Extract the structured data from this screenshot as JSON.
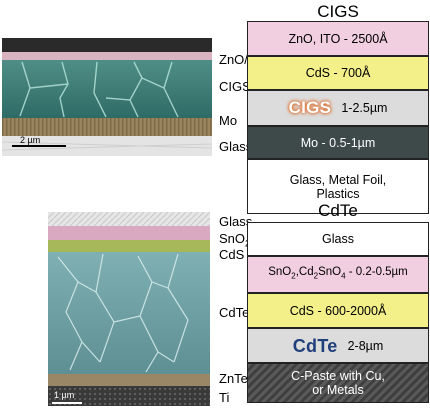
{
  "cigs": {
    "title": "CIGS",
    "micrograph_labels": {
      "zno_cds": "ZnO/CdS",
      "cigs": "CIGS",
      "mo": "Mo",
      "glass": "Glass"
    },
    "scale_bar": "2 µm",
    "layers": {
      "zno": "ZnO, ITO - 2500Å",
      "cds": "CdS - 700Å",
      "absorber_name": "CIGS",
      "absorber_thickness": "1-2.5µm",
      "mo": "Mo - 0.5-1µm",
      "glass_line1": "Glass, Metal Foil,",
      "glass_line2": "Plastics"
    }
  },
  "cdte": {
    "title": "CdTe",
    "micrograph_labels": {
      "glass": "Glass",
      "sno2": "SnO",
      "sno2_sub": "2",
      "cds": "CdS",
      "cdte": "CdTe",
      "znte": "ZnTe:Cu",
      "ti": "Ti"
    },
    "scale_bar": "1 µm",
    "layers": {
      "glass": "Glass",
      "tco_a": "SnO",
      "tco_a_sub": "2",
      "tco_b": ",Cd",
      "tco_b_sub": "2",
      "tco_c": "SnO",
      "tco_c_sub": "4",
      "tco_d": " - 0.2-0.5µm",
      "cds": "CdS - 600-2000Å",
      "absorber_name": "CdTe",
      "absorber_thickness": "2-8µm",
      "contact_line1": "C-Paste with Cu,",
      "contact_line2": "or Metals"
    }
  },
  "colors": {
    "zno_layer": "#f2cfe0",
    "cds_layer": "#f3f08a",
    "absorber_layer": "#dcdcdc",
    "mo_layer": "#3e4a4a",
    "glass_layer": "#ffffff",
    "cdte_title_text": "#1f3f7a"
  }
}
